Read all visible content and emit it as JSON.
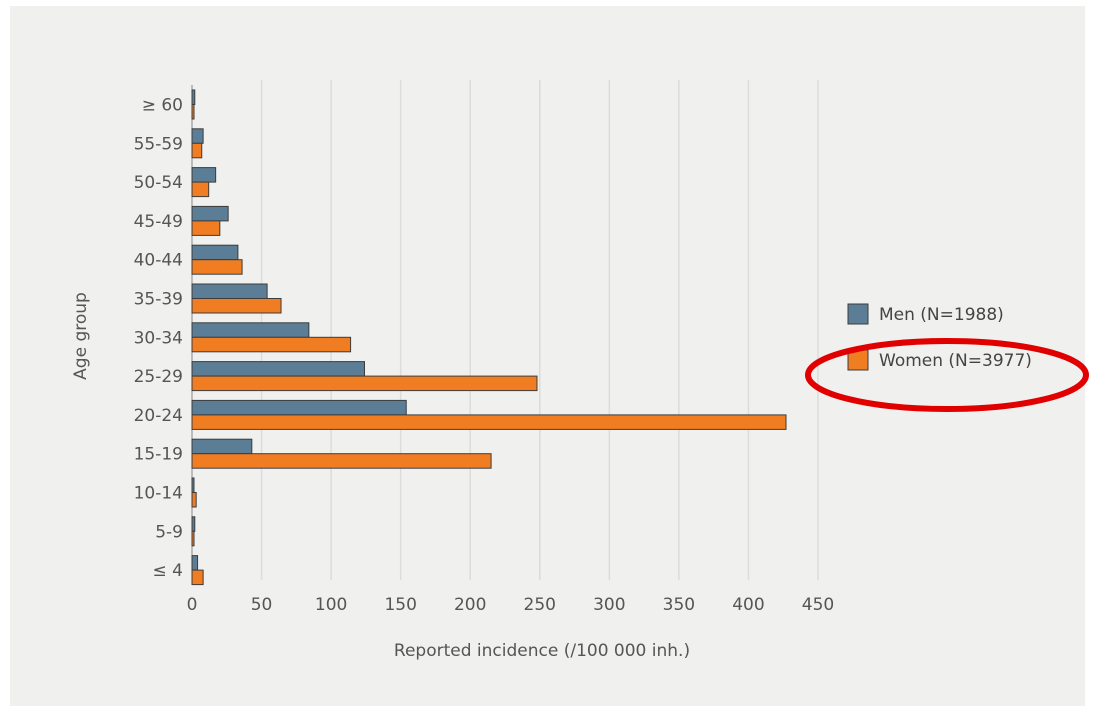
{
  "chart_data": {
    "type": "bar",
    "orientation": "horizontal",
    "categories": [
      "≥ 60",
      "55-59",
      "50-54",
      "45-49",
      "40-44",
      "35-39",
      "30-34",
      "25-29",
      "20-24",
      "15-19",
      "10-14",
      "5-9",
      "≤ 4"
    ],
    "series": [
      {
        "name": "Men (N=1988)",
        "color": "#5b7d95",
        "values": [
          2,
          8,
          17,
          26,
          33,
          54,
          84,
          124,
          154,
          43,
          1,
          2,
          4
        ]
      },
      {
        "name": "Women (N=3977)",
        "color": "#f07d22",
        "values": [
          0,
          7,
          12,
          20,
          36,
          64,
          114,
          248,
          427,
          215,
          3,
          0,
          8
        ]
      }
    ],
    "xlabel": "Reported incidence (/100 000 inh.)",
    "ylabel": "Age group",
    "xlim": [
      0,
      450
    ],
    "xticks": [
      0,
      50,
      100,
      150,
      200,
      250,
      300,
      350,
      400,
      450
    ],
    "grid": "vertical",
    "legend": "right",
    "annotation": {
      "type": "ellipse",
      "color": "#e00000",
      "target": "legend entry Women (N=3977)"
    }
  }
}
